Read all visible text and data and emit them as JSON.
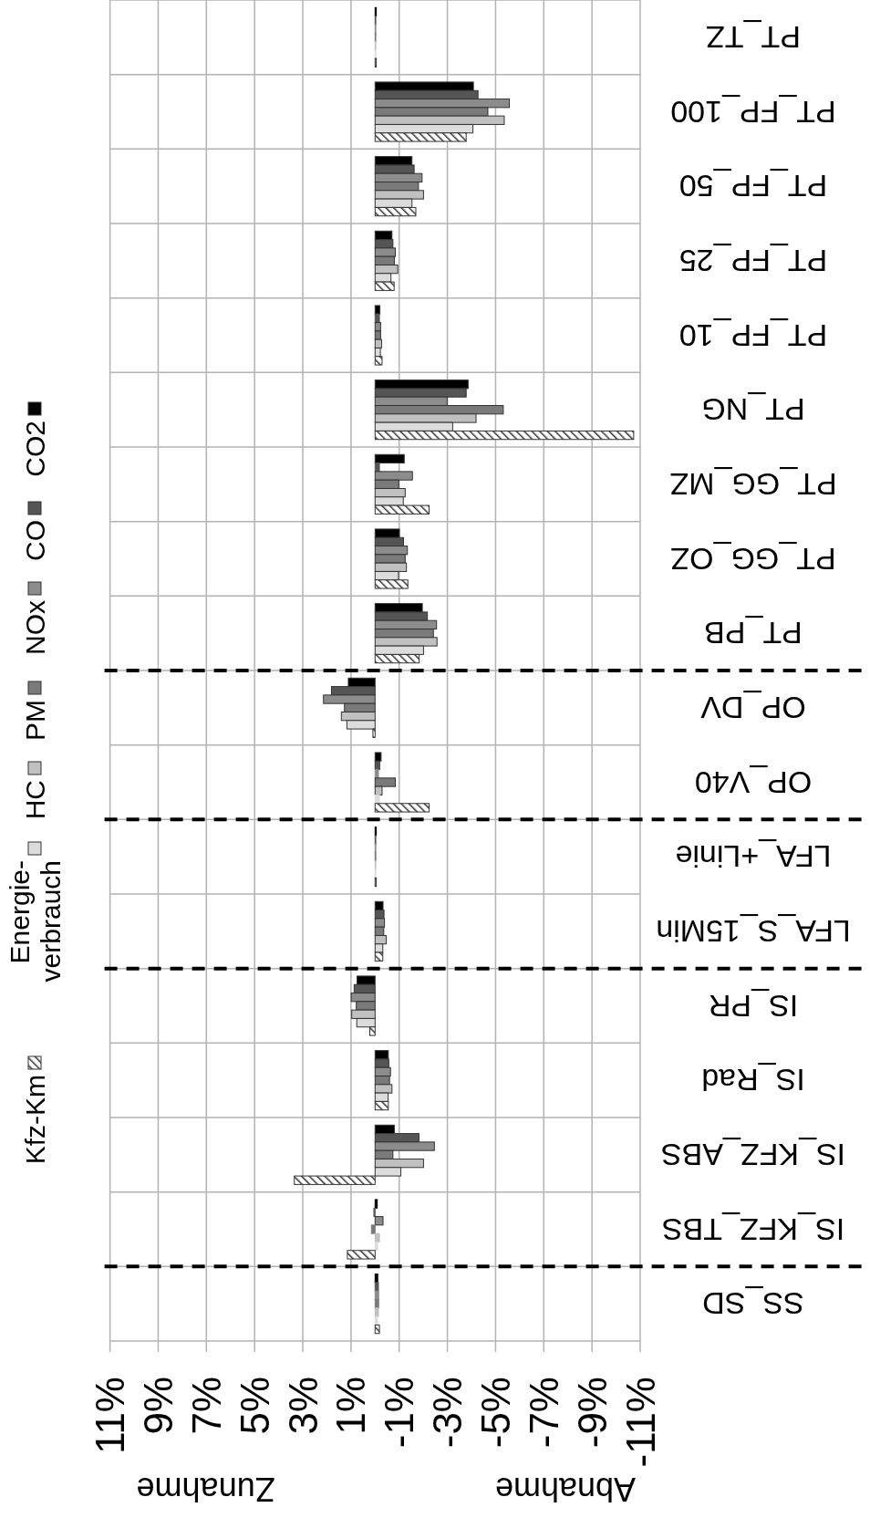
{
  "chart_data": {
    "type": "bar",
    "orientation": "horizontal",
    "categories": [
      "PT_TZ",
      "PT_FP_100",
      "PT_FP_50",
      "PT_FP_25",
      "PT_FP_10",
      "PT_NG",
      "PT_GG_MZ",
      "PT_GG_OZ",
      "PT_PB",
      "OP_DV",
      "OP_V40",
      "LFA_+Linie",
      "LFA_S_15Min",
      "IS_PR",
      "IS_Rad",
      "IS_KFZ_ABS",
      "IS_KFZ_TBS",
      "SS_SD"
    ],
    "series": [
      {
        "name": "CO2",
        "color": "#000000",
        "values": [
          -0.05,
          -4.08,
          -1.53,
          -0.7,
          -0.2,
          -3.86,
          -1.21,
          -1.01,
          -1.96,
          1.11,
          -0.25,
          -0.05,
          -0.33,
          0.75,
          -0.55,
          -0.8,
          -0.09,
          -0.11
        ]
      },
      {
        "name": "CO",
        "color": "#555555",
        "values": [
          -0.03,
          -4.27,
          -1.62,
          -0.74,
          -0.18,
          -3.78,
          -0.18,
          -1.18,
          -2.17,
          1.81,
          -0.19,
          -0.03,
          -0.37,
          0.87,
          -0.57,
          -1.82,
          0.05,
          -0.14
        ]
      },
      {
        "name": "NOx",
        "color": "#8c8c8c",
        "values": [
          -0.03,
          -5.57,
          -1.95,
          -0.84,
          -0.23,
          -2.99,
          -1.55,
          -1.34,
          -2.55,
          2.14,
          -0.14,
          -0.03,
          -0.39,
          0.99,
          -0.64,
          -2.46,
          -0.33,
          -0.15
        ]
      },
      {
        "name": "PM",
        "color": "#7a7a7a",
        "values": [
          -0.03,
          -4.68,
          -1.8,
          -0.8,
          -0.23,
          -5.32,
          -0.98,
          -1.25,
          -2.42,
          1.27,
          -0.84,
          -0.03,
          -0.36,
          0.78,
          -0.6,
          -0.74,
          0.15,
          -0.15
        ]
      },
      {
        "name": "HC",
        "color": "#c0c0c0",
        "values": [
          -0.03,
          -5.36,
          -2.01,
          -0.94,
          -0.27,
          -4.19,
          -1.25,
          -1.3,
          -2.57,
          1.4,
          -0.29,
          -0.03,
          -0.46,
          0.97,
          -0.7,
          -2.01,
          -0.18,
          -0.14
        ]
      },
      {
        "name": "Energie-verbrauch",
        "color": "#dcdcdc",
        "values": [
          -0.03,
          -4.06,
          -1.53,
          -0.66,
          -0.22,
          -3.22,
          -1.17,
          -0.97,
          -2.01,
          1.17,
          -0.18,
          -0.03,
          -0.32,
          0.76,
          -0.54,
          -1.07,
          -0.1,
          -0.1
        ]
      },
      {
        "name": "Kfz-Km",
        "color": "#333333",
        "values": [
          -0.05,
          -3.78,
          -1.69,
          -0.79,
          -0.29,
          -10.73,
          -2.24,
          -1.36,
          -1.83,
          0.09,
          -2.24,
          -0.05,
          -0.32,
          0.22,
          -0.55,
          3.35,
          1.15,
          -0.18
        ]
      }
    ],
    "xlim": [
      11,
      -11
    ],
    "xticks": [
      {
        "value": 11,
        "label": "11%"
      },
      {
        "value": 9,
        "label": "9%"
      },
      {
        "value": 7,
        "label": "7%"
      },
      {
        "value": 5,
        "label": "5%"
      },
      {
        "value": 3,
        "label": "3%"
      },
      {
        "value": 1,
        "label": "1%"
      },
      {
        "value": -1,
        "label": "-1%"
      },
      {
        "value": -3,
        "label": "-3%"
      },
      {
        "value": -5,
        "label": "-5%"
      },
      {
        "value": -7,
        "label": "-7%"
      },
      {
        "value": -9,
        "label": "-9%"
      },
      {
        "value": -11,
        "label": "-11%"
      }
    ],
    "grid": true,
    "legend": "left",
    "annotations": [
      "Zunahme",
      "Abnahme"
    ]
  }
}
